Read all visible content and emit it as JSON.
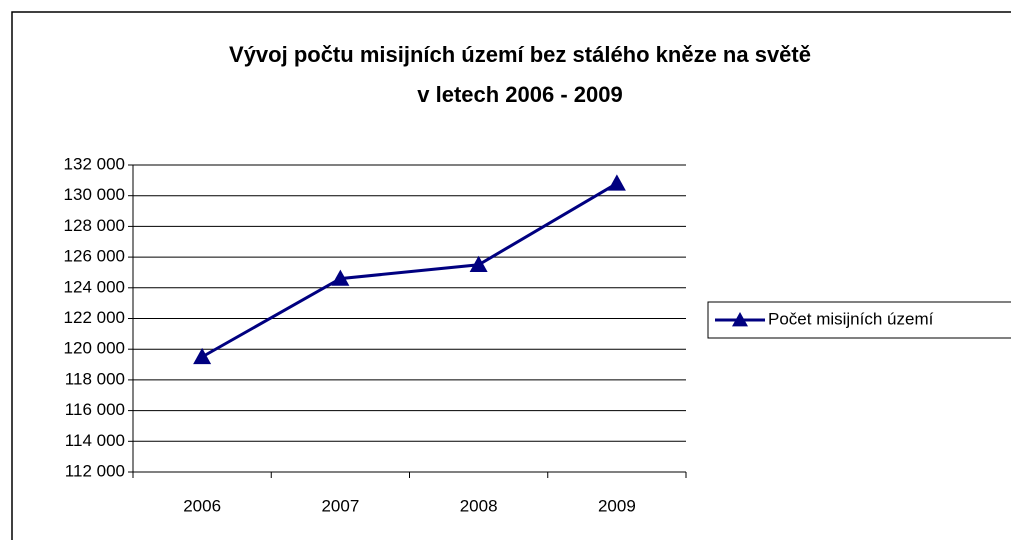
{
  "chart_data": {
    "type": "line",
    "title": [
      "Vývoj počtu misijních území bez stálého kněze na světě",
      "v letech 2006 - 2009"
    ],
    "categories": [
      "2006",
      "2007",
      "2008",
      "2009"
    ],
    "series": [
      {
        "name": "Počet misijních území",
        "color": "#000080",
        "values": [
          119500,
          124600,
          125500,
          130800
        ]
      }
    ],
    "ylim": [
      112000,
      132000
    ],
    "yticks": [
      {
        "value": 112000,
        "label": "112 000"
      },
      {
        "value": 114000,
        "label": "114 000"
      },
      {
        "value": 116000,
        "label": "116 000"
      },
      {
        "value": 118000,
        "label": "118 000"
      },
      {
        "value": 120000,
        "label": "120 000"
      },
      {
        "value": 122000,
        "label": "122 000"
      },
      {
        "value": 124000,
        "label": "124 000"
      },
      {
        "value": 126000,
        "label": "126 000"
      },
      {
        "value": 128000,
        "label": "128 000"
      },
      {
        "value": 130000,
        "label": "130 000"
      },
      {
        "value": 132000,
        "label": "132 000"
      }
    ],
    "grid": true,
    "legend": "right"
  }
}
